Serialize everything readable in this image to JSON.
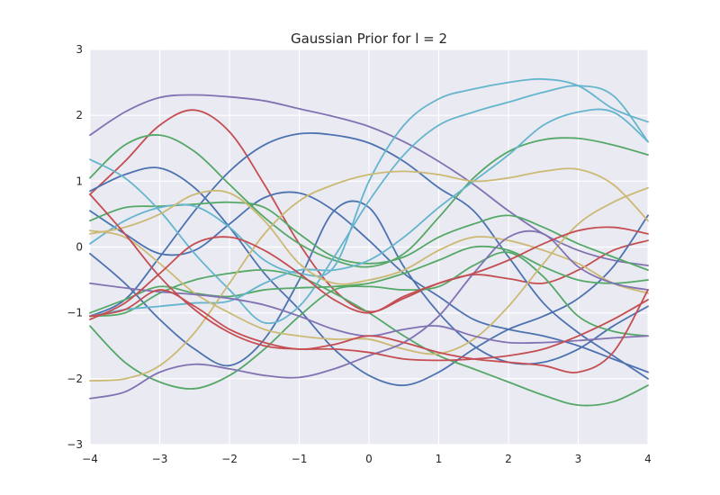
{
  "chart_data": {
    "type": "line",
    "title": "Gaussian Prior for l = 2",
    "xlabel": "",
    "ylabel": "",
    "xlim": [
      -4,
      4
    ],
    "ylim": [
      -3,
      3
    ],
    "xticks": [
      -4,
      -3,
      -2,
      -1,
      0,
      1,
      2,
      3,
      4
    ],
    "yticks": [
      -3,
      -2,
      -1,
      0,
      1,
      2,
      3
    ],
    "grid": true,
    "background": "#eaeaf2",
    "palette": [
      "#4c72b0",
      "#55a868",
      "#c44e52",
      "#8172b2",
      "#ccb974",
      "#64b5cd"
    ],
    "x": [
      -4,
      -3.5,
      -3,
      -2.5,
      -2,
      -1.5,
      -1,
      -0.5,
      0,
      0.5,
      1,
      1.5,
      2,
      2.5,
      3,
      3.5,
      4
    ],
    "series": [
      {
        "color": "#8172b2",
        "values": [
          1.7,
          2.05,
          2.27,
          2.31,
          2.28,
          2.22,
          2.1,
          1.98,
          1.83,
          1.6,
          1.3,
          0.95,
          0.55,
          0.2,
          -0.05,
          -0.2,
          -0.28
        ]
      },
      {
        "color": "#c44e52",
        "values": [
          0.8,
          1.3,
          1.85,
          2.08,
          1.75,
          0.95,
          0.05,
          -0.65,
          -0.98,
          -0.78,
          -0.55,
          -0.42,
          -0.48,
          -0.55,
          -0.35,
          -0.05,
          0.1
        ]
      },
      {
        "color": "#4c72b0",
        "values": [
          0.85,
          1.1,
          1.2,
          0.9,
          0.3,
          -0.4,
          -0.95,
          -1.55,
          -1.95,
          -2.1,
          -1.9,
          -1.55,
          -1.25,
          -1.05,
          -0.78,
          -0.3,
          0.48
        ]
      },
      {
        "color": "#4c72b0",
        "values": [
          -1.05,
          -0.8,
          -0.15,
          0.55,
          1.15,
          1.55,
          1.72,
          1.7,
          1.58,
          1.3,
          0.9,
          0.55,
          -0.15,
          -0.85,
          -1.3,
          -1.65,
          -2.0
        ]
      },
      {
        "color": "#4c72b0",
        "values": [
          -0.1,
          -0.55,
          -1.1,
          -1.55,
          -1.8,
          -1.4,
          -0.5,
          0.55,
          0.6,
          -0.3,
          -1.0,
          -1.5,
          -1.75,
          -1.75,
          -1.55,
          -1.2,
          -0.9
        ]
      },
      {
        "color": "#4c72b0",
        "values": [
          0.55,
          0.2,
          -0.1,
          -0.05,
          0.35,
          0.75,
          0.82,
          0.55,
          0.1,
          -0.4,
          -0.75,
          -1.1,
          -1.25,
          -1.35,
          -1.5,
          -1.7,
          -1.9
        ]
      },
      {
        "color": "#55a868",
        "values": [
          1.05,
          1.55,
          1.7,
          1.45,
          0.95,
          0.45,
          0.05,
          -0.2,
          -0.3,
          -0.1,
          0.45,
          1.05,
          1.45,
          1.63,
          1.65,
          1.55,
          1.4
        ]
      },
      {
        "color": "#55a868",
        "values": [
          0.4,
          0.6,
          0.62,
          0.65,
          0.68,
          0.6,
          0.2,
          -0.15,
          -0.25,
          -0.15,
          0.15,
          0.35,
          0.48,
          0.3,
          0.05,
          -0.15,
          -0.35
        ]
      },
      {
        "color": "#55a868",
        "values": [
          -1.2,
          -1.75,
          -2.05,
          -2.15,
          -1.95,
          -1.55,
          -1.05,
          -0.65,
          -0.6,
          -0.65,
          -0.6,
          -0.28,
          -0.08,
          -0.45,
          -1.05,
          -1.28,
          -1.35
        ]
      },
      {
        "color": "#55a868",
        "values": [
          -1.0,
          -0.8,
          -0.6,
          -0.7,
          -0.75,
          -0.65,
          -0.62,
          -0.6,
          -0.55,
          -0.4,
          -0.2,
          0.0,
          -0.05,
          -0.3,
          -0.5,
          -0.55,
          -0.5
        ]
      },
      {
        "color": "#55a868",
        "values": [
          -1.05,
          -1.0,
          -0.7,
          -0.5,
          -0.4,
          -0.35,
          -0.45,
          -0.7,
          -1.0,
          -1.35,
          -1.65,
          -1.85,
          -2.05,
          -2.25,
          -2.4,
          -2.35,
          -2.1
        ]
      },
      {
        "color": "#64b5cd",
        "values": [
          1.33,
          1.05,
          0.55,
          -0.1,
          -0.65,
          -1.15,
          -0.9,
          -0.15,
          0.7,
          1.4,
          1.85,
          2.05,
          2.2,
          2.35,
          2.45,
          2.3,
          1.6
        ]
      },
      {
        "color": "#64b5cd",
        "values": [
          0.05,
          0.4,
          0.6,
          0.62,
          0.3,
          -0.2,
          -0.4,
          -0.3,
          1.0,
          1.85,
          2.25,
          2.4,
          2.5,
          2.55,
          2.45,
          2.1,
          1.9
        ]
      },
      {
        "color": "#64b5cd",
        "values": [
          -1.05,
          -0.95,
          -0.9,
          -0.85,
          -0.82,
          -0.55,
          -0.35,
          -0.35,
          -0.2,
          0.15,
          0.6,
          1.0,
          1.4,
          1.85,
          2.05,
          2.05,
          1.6
        ]
      },
      {
        "color": "#ccb974",
        "values": [
          0.2,
          0.3,
          0.5,
          0.8,
          0.82,
          0.4,
          -0.25,
          -0.55,
          -0.5,
          -0.35,
          -0.05,
          0.15,
          0.1,
          -0.05,
          -0.25,
          -0.55,
          -0.7
        ]
      },
      {
        "color": "#ccb974",
        "values": [
          0.25,
          0.15,
          -0.25,
          -0.7,
          -1.0,
          -1.25,
          -1.35,
          -1.4,
          -1.4,
          -1.55,
          -1.62,
          -1.4,
          -0.9,
          -0.25,
          0.35,
          0.68,
          0.9
        ]
      },
      {
        "color": "#ccb974",
        "values": [
          -2.03,
          -2.0,
          -1.8,
          -1.3,
          -0.55,
          0.2,
          0.7,
          0.95,
          1.1,
          1.15,
          1.1,
          1.0,
          1.05,
          1.15,
          1.18,
          0.95,
          0.4
        ]
      },
      {
        "color": "#8172b2",
        "values": [
          -0.55,
          -0.62,
          -0.68,
          -0.72,
          -0.78,
          -0.88,
          -1.05,
          -1.25,
          -1.35,
          -1.25,
          -1.2,
          -1.35,
          -1.45,
          -1.45,
          -1.42,
          -1.38,
          -1.35
        ]
      },
      {
        "color": "#8172b2",
        "values": [
          -2.3,
          -2.2,
          -1.9,
          -1.78,
          -1.85,
          -1.95,
          -1.98,
          -1.85,
          -1.65,
          -1.45,
          -1.05,
          -0.4,
          0.15,
          0.2,
          -0.3,
          -0.55,
          -0.65
        ]
      },
      {
        "color": "#c44e52",
        "values": [
          -1.1,
          -0.85,
          -0.4,
          0.05,
          0.15,
          -0.05,
          -0.4,
          -0.8,
          -1.0,
          -0.75,
          -0.55,
          -0.4,
          -0.2,
          0.05,
          0.25,
          0.3,
          0.2
        ]
      },
      {
        "color": "#c44e52",
        "values": [
          -1.05,
          -0.95,
          -0.65,
          -0.9,
          -1.25,
          -1.45,
          -1.55,
          -1.48,
          -1.35,
          -1.45,
          -1.6,
          -1.7,
          -1.75,
          -1.8,
          -1.9,
          -1.6,
          -0.65
        ]
      },
      {
        "color": "#c44e52",
        "values": [
          0.8,
          0.2,
          -0.45,
          -0.95,
          -1.3,
          -1.5,
          -1.55,
          -1.55,
          -1.6,
          -1.7,
          -1.72,
          -1.7,
          -1.65,
          -1.55,
          -1.35,
          -1.1,
          -0.8
        ]
      }
    ]
  }
}
